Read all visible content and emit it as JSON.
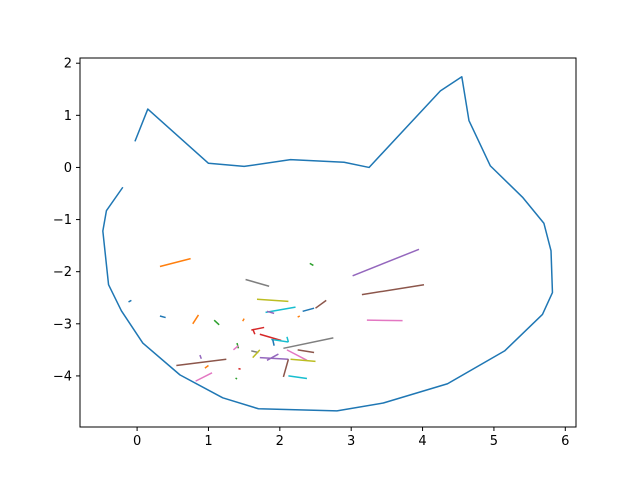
{
  "chart_data": {
    "type": "line",
    "title": "",
    "xlabel": "",
    "ylabel": "",
    "xlim": [
      -0.8,
      6.15
    ],
    "ylim": [
      -4.98,
      2.1
    ],
    "xticks": [
      0,
      1,
      2,
      3,
      4,
      5,
      6
    ],
    "yticks": [
      2,
      1,
      0,
      -1,
      -2,
      -3,
      -4
    ],
    "xtick_labels": [
      "0",
      "1",
      "2",
      "3",
      "4",
      "5",
      "6"
    ],
    "ytick_labels": [
      "2",
      "1",
      "0",
      "−1",
      "−2",
      "−3",
      "−4"
    ],
    "grid": false,
    "outline": {
      "color": "#1f77b4",
      "x": [
        -0.03,
        0.15,
        1.0,
        1.5,
        2.15,
        2.9,
        3.25,
        4.25,
        4.55,
        4.65,
        4.95,
        5.4,
        5.7,
        5.8,
        5.82,
        5.68,
        5.15,
        4.35,
        3.45,
        2.8,
        1.7,
        1.2,
        0.6,
        0.08,
        -0.22,
        -0.4,
        -0.48,
        -0.43,
        -0.2
      ],
      "y": [
        0.5,
        1.12,
        0.08,
        0.02,
        0.15,
        0.1,
        0.0,
        1.47,
        1.74,
        0.9,
        0.03,
        -0.57,
        -1.07,
        -1.6,
        -2.4,
        -2.82,
        -3.52,
        -4.15,
        -4.52,
        -4.67,
        -4.63,
        -4.42,
        -3.98,
        -3.37,
        -2.75,
        -2.25,
        -1.22,
        -0.83,
        -0.38
      ]
    },
    "segments": [
      {
        "color": "#ff7f0e",
        "x": [
          0.32,
          0.75
        ],
        "y": [
          -1.9,
          -1.75
        ]
      },
      {
        "color": "#1f77b4",
        "x": [
          -0.12,
          -0.08
        ],
        "y": [
          -2.58,
          -2.55
        ]
      },
      {
        "color": "#1f77b4",
        "x": [
          0.32,
          0.4
        ],
        "y": [
          -2.85,
          -2.88
        ]
      },
      {
        "color": "#ff7f0e",
        "x": [
          0.78,
          0.86
        ],
        "y": [
          -3.0,
          -2.83
        ]
      },
      {
        "color": "#2ca02c",
        "x": [
          1.08,
          1.15
        ],
        "y": [
          -2.93,
          -3.02
        ]
      },
      {
        "color": "#8c564b",
        "x": [
          0.55,
          1.25
        ],
        "y": [
          -3.8,
          -3.68
        ]
      },
      {
        "color": "#9467bd",
        "x": [
          0.88,
          0.9
        ],
        "y": [
          -3.6,
          -3.67
        ]
      },
      {
        "color": "#ff7f0e",
        "x": [
          0.95,
          1.0
        ],
        "y": [
          -3.85,
          -3.8
        ]
      },
      {
        "color": "#e377c2",
        "x": [
          0.82,
          1.05
        ],
        "y": [
          -4.1,
          -3.94
        ]
      },
      {
        "color": "#7f7f7f",
        "x": [
          1.52,
          1.85
        ],
        "y": [
          -2.15,
          -2.28
        ]
      },
      {
        "color": "#bcbd22",
        "x": [
          1.68,
          2.12
        ],
        "y": [
          -2.53,
          -2.57
        ]
      },
      {
        "color": "#17becf",
        "x": [
          1.8,
          2.22
        ],
        "y": [
          -2.78,
          -2.68
        ]
      },
      {
        "color": "#9467bd",
        "x": [
          1.82,
          1.92
        ],
        "y": [
          -2.76,
          -2.8
        ]
      },
      {
        "color": "#ff7f0e",
        "x": [
          1.48,
          1.5
        ],
        "y": [
          -2.95,
          -2.9
        ]
      },
      {
        "color": "#d62728",
        "x": [
          1.6,
          1.78
        ],
        "y": [
          -3.12,
          -3.07
        ]
      },
      {
        "color": "#d62728",
        "x": [
          1.62,
          1.65
        ],
        "y": [
          -3.1,
          -3.2
        ]
      },
      {
        "color": "#d62728",
        "x": [
          1.72,
          2.02
        ],
        "y": [
          -3.2,
          -3.32
        ]
      },
      {
        "color": "#2ca02c",
        "x": [
          1.4,
          1.42
        ],
        "y": [
          -3.37,
          -3.47
        ]
      },
      {
        "color": "#e377c2",
        "x": [
          1.35,
          1.42
        ],
        "y": [
          -3.5,
          -3.42
        ]
      },
      {
        "color": "#7f7f7f",
        "x": [
          1.6,
          1.7
        ],
        "y": [
          -3.52,
          -3.55
        ]
      },
      {
        "color": "#bcbd22",
        "x": [
          1.62,
          1.72
        ],
        "y": [
          -3.65,
          -3.5
        ]
      },
      {
        "color": "#17becf",
        "x": [
          1.88,
          2.12
        ],
        "y": [
          -3.3,
          -3.35
        ]
      },
      {
        "color": "#1f77b4",
        "x": [
          1.9,
          1.92
        ],
        "y": [
          -3.3,
          -3.42
        ]
      },
      {
        "color": "#7f7f7f",
        "x": [
          2.05,
          2.75
        ],
        "y": [
          -3.47,
          -3.27
        ]
      },
      {
        "color": "#17becf",
        "x": [
          2.1,
          2.12
        ],
        "y": [
          -3.25,
          -3.35
        ]
      },
      {
        "color": "#9467bd",
        "x": [
          1.72,
          2.12
        ],
        "y": [
          -3.65,
          -3.68
        ]
      },
      {
        "color": "#9467bd",
        "x": [
          1.82,
          1.98
        ],
        "y": [
          -3.7,
          -3.58
        ]
      },
      {
        "color": "#e377c2",
        "x": [
          2.1,
          2.38
        ],
        "y": [
          -3.5,
          -3.7
        ]
      },
      {
        "color": "#bcbd22",
        "x": [
          2.15,
          2.5
        ],
        "y": [
          -3.68,
          -3.72
        ]
      },
      {
        "color": "#8c564b",
        "x": [
          2.25,
          2.48
        ],
        "y": [
          -3.5,
          -3.55
        ]
      },
      {
        "color": "#8c564b",
        "x": [
          2.05,
          2.12
        ],
        "y": [
          -4.02,
          -3.68
        ]
      },
      {
        "color": "#17becf",
        "x": [
          2.12,
          2.38
        ],
        "y": [
          -4.0,
          -4.05
        ]
      },
      {
        "color": "#d62728",
        "x": [
          1.42,
          1.45
        ],
        "y": [
          -3.86,
          -3.87
        ]
      },
      {
        "color": "#2ca02c",
        "x": [
          1.38,
          1.4
        ],
        "y": [
          -4.04,
          -4.06
        ]
      },
      {
        "color": "#1f77b4",
        "x": [
          2.32,
          2.48
        ],
        "y": [
          -2.76,
          -2.7
        ]
      },
      {
        "color": "#8c564b",
        "x": [
          2.5,
          2.65
        ],
        "y": [
          -2.7,
          -2.55
        ]
      },
      {
        "color": "#ff7f0e",
        "x": [
          2.25,
          2.28
        ],
        "y": [
          -2.87,
          -2.85
        ]
      },
      {
        "color": "#2ca02c",
        "x": [
          2.42,
          2.47
        ],
        "y": [
          -1.84,
          -1.88
        ]
      },
      {
        "color": "#9467bd",
        "x": [
          3.02,
          3.95
        ],
        "y": [
          -2.08,
          -1.57
        ]
      },
      {
        "color": "#8c564b",
        "x": [
          3.15,
          4.02
        ],
        "y": [
          -2.44,
          -2.25
        ]
      },
      {
        "color": "#e377c2",
        "x": [
          3.22,
          3.72
        ],
        "y": [
          -2.93,
          -2.94
        ]
      }
    ]
  }
}
